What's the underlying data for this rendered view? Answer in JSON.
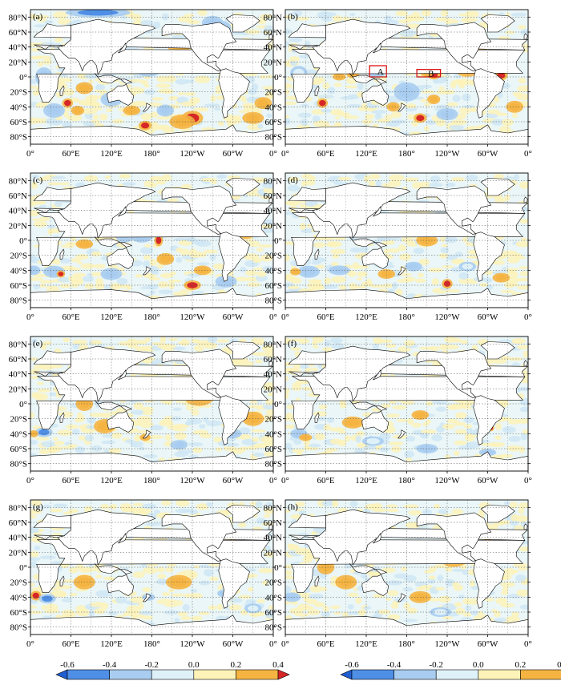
{
  "chart_data": {
    "type": "heatmap",
    "description_units": "anomaly",
    "lat_ticks": [
      "80°N",
      "60°N",
      "40°N",
      "20°N",
      "0°",
      "20°S",
      "40°S",
      "60°S",
      "80°S"
    ],
    "lat_values": [
      80,
      60,
      40,
      20,
      0,
      -20,
      -40,
      -60,
      -80
    ],
    "lon_ticks": [
      "0°",
      "60°E",
      "120°E",
      "180°",
      "120°W",
      "60°W",
      "0°"
    ],
    "lon_values": [
      0,
      60,
      120,
      180,
      240,
      300,
      360
    ],
    "lat_range": [
      -90,
      90
    ],
    "lon_range": [
      0,
      360
    ],
    "colorbar": {
      "labels": [
        "-0.6",
        "-0.4",
        "-0.2",
        "0.0",
        "0.2",
        "0.4"
      ],
      "bounds": [
        -0.6,
        -0.4,
        -0.2,
        0.0,
        0.2,
        0.4
      ],
      "colors": [
        "#1f5fd0",
        "#4f8fe6",
        "#a9cdf1",
        "#dff1f8",
        "#fdf2b8",
        "#f5b441",
        "#d72626"
      ]
    },
    "panels": [
      {
        "label": "(a)",
        "anomalies": [
          {
            "lon": 100,
            "lat": 86,
            "value": -0.45,
            "dlon": 30,
            "dlat": 4
          },
          {
            "lon": 285,
            "lat": 65,
            "value": -0.4,
            "dlon": 8,
            "dlat": 6
          },
          {
            "lon": 270,
            "lat": 72,
            "value": -0.3,
            "dlon": 10,
            "dlat": 6
          },
          {
            "lon": 240,
            "lat": -55,
            "value": 0.45,
            "dlon": 10,
            "dlat": 6
          },
          {
            "lon": 225,
            "lat": -60,
            "value": 0.3,
            "dlon": 12,
            "dlat": 6
          },
          {
            "lon": 200,
            "lat": -45,
            "value": -0.35,
            "dlon": 8,
            "dlat": 5
          },
          {
            "lon": 170,
            "lat": -65,
            "value": 0.45,
            "dlon": 6,
            "dlat": 4
          },
          {
            "lon": 55,
            "lat": -35,
            "value": 0.45,
            "dlon": 5,
            "dlat": 4
          },
          {
            "lon": 70,
            "lat": -45,
            "value": 0.3,
            "dlon": 6,
            "dlat": 4
          },
          {
            "lon": 150,
            "lat": -45,
            "value": 0.3,
            "dlon": 8,
            "dlat": 4
          },
          {
            "lon": 345,
            "lat": -35,
            "value": 0.35,
            "dlon": 8,
            "dlat": 5
          },
          {
            "lon": 330,
            "lat": -55,
            "value": 0.25,
            "dlon": 10,
            "dlat": 5
          },
          {
            "lon": 35,
            "lat": -45,
            "value": -0.25,
            "dlon": 10,
            "dlat": 6
          },
          {
            "lon": 175,
            "lat": 10,
            "value": -0.25,
            "dlon": 12,
            "dlat": 6
          },
          {
            "lon": 250,
            "lat": 20,
            "value": -0.25,
            "dlon": 10,
            "dlat": 6
          },
          {
            "lon": 120,
            "lat": -30,
            "value": -0.25,
            "dlon": 10,
            "dlat": 6
          },
          {
            "lon": 300,
            "lat": -10,
            "value": 0.25,
            "dlon": 10,
            "dlat": 6
          },
          {
            "lon": 20,
            "lat": 0,
            "value": -0.25,
            "dlon": 8,
            "dlat": 8
          },
          {
            "lon": 220,
            "lat": 40,
            "value": 0.25,
            "dlon": 10,
            "dlat": 6
          },
          {
            "lon": 80,
            "lat": -15,
            "value": 0.25,
            "dlon": 8,
            "dlat": 5
          }
        ]
      },
      {
        "label": "(b)",
        "boxes": [
          {
            "label": "A",
            "lon0": 125,
            "lon1": 150,
            "lat0": 0,
            "lat1": 15
          },
          {
            "label": "B",
            "lon0": 195,
            "lon1": 230,
            "lat0": 0,
            "lat1": 10
          }
        ],
        "anomalies": [
          {
            "lon": 220,
            "lat": 3,
            "value": 0.55,
            "dlon": 6,
            "dlat": 4
          },
          {
            "lon": 210,
            "lat": 5,
            "value": 0.35,
            "dlon": 6,
            "dlat": 3
          },
          {
            "lon": 320,
            "lat": 2,
            "value": 0.5,
            "dlon": 6,
            "dlat": 4
          },
          {
            "lon": 245,
            "lat": 12,
            "value": 0.45,
            "dlon": 4,
            "dlat": 3
          },
          {
            "lon": 135,
            "lat": 5,
            "value": -0.4,
            "dlon": 8,
            "dlat": 4
          },
          {
            "lon": 270,
            "lat": 10,
            "value": 0.3,
            "dlon": 12,
            "dlat": 6
          },
          {
            "lon": 100,
            "lat": 5,
            "value": 0.35,
            "dlon": 6,
            "dlat": 4
          },
          {
            "lon": 80,
            "lat": 0,
            "value": 0.3,
            "dlon": 6,
            "dlat": 3
          },
          {
            "lon": 55,
            "lat": -35,
            "value": 0.4,
            "dlon": 5,
            "dlat": 4
          },
          {
            "lon": 200,
            "lat": -55,
            "value": 0.45,
            "dlon": 6,
            "dlat": 4
          },
          {
            "lon": 220,
            "lat": -30,
            "value": 0.3,
            "dlon": 6,
            "dlat": 4
          },
          {
            "lon": 160,
            "lat": -40,
            "value": 0.3,
            "dlon": 6,
            "dlat": 4
          },
          {
            "lon": 240,
            "lat": -50,
            "value": -0.25,
            "dlon": 10,
            "dlat": 5
          },
          {
            "lon": 180,
            "lat": -20,
            "value": -0.25,
            "dlon": 12,
            "dlat": 8
          },
          {
            "lon": 200,
            "lat": 20,
            "value": -0.25,
            "dlon": 14,
            "dlat": 6
          },
          {
            "lon": 340,
            "lat": -40,
            "value": 0.25,
            "dlon": 8,
            "dlat": 5
          },
          {
            "lon": 20,
            "lat": 5,
            "value": -0.2,
            "dlon": 8,
            "dlat": 6
          },
          {
            "lon": 290,
            "lat": 30,
            "value": 0.25,
            "dlon": 10,
            "dlat": 5
          }
        ]
      },
      {
        "label": "(c)",
        "anomalies": [
          {
            "lon": 190,
            "lat": 0,
            "value": 0.55,
            "dlon": 4,
            "dlat": 5
          },
          {
            "lon": 165,
            "lat": 5,
            "value": -0.4,
            "dlon": 10,
            "dlat": 5
          },
          {
            "lon": 140,
            "lat": 10,
            "value": -0.3,
            "dlon": 10,
            "dlat": 8
          },
          {
            "lon": 35,
            "lat": -42,
            "value": -0.4,
            "dlon": 10,
            "dlat": 5
          },
          {
            "lon": 45,
            "lat": -45,
            "value": 0.5,
            "dlon": 4,
            "dlat": 3
          },
          {
            "lon": 240,
            "lat": -60,
            "value": 0.45,
            "dlon": 8,
            "dlat": 4
          },
          {
            "lon": 255,
            "lat": -40,
            "value": 0.3,
            "dlon": 8,
            "dlat": 4
          },
          {
            "lon": 80,
            "lat": -5,
            "value": 0.3,
            "dlon": 8,
            "dlat": 4
          },
          {
            "lon": 320,
            "lat": 10,
            "value": 0.3,
            "dlon": 8,
            "dlat": 5
          },
          {
            "lon": 200,
            "lat": -25,
            "value": 0.3,
            "dlon": 8,
            "dlat": 5
          },
          {
            "lon": 120,
            "lat": -45,
            "value": -0.25,
            "dlon": 10,
            "dlat": 5
          },
          {
            "lon": 290,
            "lat": -55,
            "value": -0.25,
            "dlon": 10,
            "dlat": 5
          },
          {
            "lon": 230,
            "lat": 20,
            "value": 0.25,
            "dlon": 10,
            "dlat": 5
          },
          {
            "lon": 5,
            "lat": -40,
            "value": -0.25,
            "dlon": 6,
            "dlat": 4
          },
          {
            "lon": 100,
            "lat": 40,
            "value": 0.25,
            "dlon": 10,
            "dlat": 5
          }
        ]
      },
      {
        "label": "(d)",
        "anomalies": [
          {
            "lon": 35,
            "lat": -42,
            "value": -0.4,
            "dlon": 10,
            "dlat": 5
          },
          {
            "lon": 15,
            "lat": -42,
            "value": 0.35,
            "dlon": 5,
            "dlat": 3
          },
          {
            "lon": 240,
            "lat": -58,
            "value": 0.45,
            "dlon": 5,
            "dlat": 4
          },
          {
            "lon": 190,
            "lat": -35,
            "value": -0.25,
            "dlon": 8,
            "dlat": 4
          },
          {
            "lon": 210,
            "lat": 0,
            "value": 0.25,
            "dlon": 10,
            "dlat": 5
          },
          {
            "lon": 80,
            "lat": -40,
            "value": -0.25,
            "dlon": 10,
            "dlat": 4
          },
          {
            "lon": 320,
            "lat": -50,
            "value": 0.25,
            "dlon": 8,
            "dlat": 4
          },
          {
            "lon": 150,
            "lat": -45,
            "value": 0.25,
            "dlon": 8,
            "dlat": 4
          },
          {
            "lon": 250,
            "lat": 20,
            "value": 0.2,
            "dlon": 10,
            "dlat": 5
          },
          {
            "lon": 270,
            "lat": -35,
            "value": -0.2,
            "dlon": 8,
            "dlat": 4
          }
        ]
      },
      {
        "label": "(e)",
        "anomalies": [
          {
            "lon": 20,
            "lat": -38,
            "value": -0.45,
            "dlon": 8,
            "dlat": 4
          },
          {
            "lon": 5,
            "lat": -40,
            "value": 0.35,
            "dlon": 4,
            "dlat": 3
          },
          {
            "lon": 170,
            "lat": -45,
            "value": 0.3,
            "dlon": 5,
            "dlat": 3
          },
          {
            "lon": 220,
            "lat": -55,
            "value": -0.3,
            "dlon": 8,
            "dlat": 4
          },
          {
            "lon": 80,
            "lat": 0,
            "value": 0.25,
            "dlon": 8,
            "dlat": 6
          },
          {
            "lon": 110,
            "lat": -30,
            "value": 0.25,
            "dlon": 10,
            "dlat": 6
          },
          {
            "lon": 250,
            "lat": 10,
            "value": 0.2,
            "dlon": 14,
            "dlat": 8
          },
          {
            "lon": 300,
            "lat": -40,
            "value": -0.25,
            "dlon": 8,
            "dlat": 4
          },
          {
            "lon": 330,
            "lat": -20,
            "value": 0.2,
            "dlon": 10,
            "dlat": 6
          },
          {
            "lon": 150,
            "lat": 20,
            "value": 0.2,
            "dlon": 10,
            "dlat": 6
          }
        ]
      },
      {
        "label": "(f)",
        "anomalies": [
          {
            "lon": 305,
            "lat": -32,
            "value": 0.5,
            "dlon": 3,
            "dlat": 3
          },
          {
            "lon": 20,
            "lat": -40,
            "value": -0.3,
            "dlon": 8,
            "dlat": 4
          },
          {
            "lon": 30,
            "lat": -45,
            "value": 0.25,
            "dlon": 6,
            "dlat": 3
          },
          {
            "lon": 300,
            "lat": -65,
            "value": -0.35,
            "dlon": 8,
            "dlat": 3
          },
          {
            "lon": 200,
            "lat": -15,
            "value": 0.3,
            "dlon": 8,
            "dlat": 4
          },
          {
            "lon": 170,
            "lat": 25,
            "value": 0.25,
            "dlon": 10,
            "dlat": 5
          },
          {
            "lon": 210,
            "lat": -60,
            "value": -0.25,
            "dlon": 10,
            "dlat": 4
          },
          {
            "lon": 100,
            "lat": -25,
            "value": 0.2,
            "dlon": 10,
            "dlat": 5
          },
          {
            "lon": 250,
            "lat": 15,
            "value": 0.2,
            "dlon": 12,
            "dlat": 6
          },
          {
            "lon": 130,
            "lat": -50,
            "value": -0.2,
            "dlon": 10,
            "dlat": 4
          }
        ]
      },
      {
        "label": "(g)",
        "anomalies": [
          {
            "lon": 8,
            "lat": -38,
            "value": 0.55,
            "dlon": 5,
            "dlat": 4
          },
          {
            "lon": 25,
            "lat": -42,
            "value": -0.45,
            "dlon": 8,
            "dlat": 4
          },
          {
            "lon": 300,
            "lat": 40,
            "value": 0.4,
            "dlon": 3,
            "dlat": 3
          },
          {
            "lon": 285,
            "lat": -35,
            "value": -0.35,
            "dlon": 5,
            "dlat": 3
          },
          {
            "lon": 150,
            "lat": 32,
            "value": 0.3,
            "dlon": 6,
            "dlat": 3
          },
          {
            "lon": 175,
            "lat": -40,
            "value": -0.25,
            "dlon": 6,
            "dlat": 3
          },
          {
            "lon": 80,
            "lat": -20,
            "value": 0.2,
            "dlon": 10,
            "dlat": 6
          },
          {
            "lon": 220,
            "lat": -20,
            "value": 0.2,
            "dlon": 12,
            "dlat": 6
          },
          {
            "lon": 200,
            "lat": 20,
            "value": 0.2,
            "dlon": 12,
            "dlat": 6
          },
          {
            "lon": 330,
            "lat": -55,
            "value": -0.2,
            "dlon": 8,
            "dlat": 4
          }
        ]
      },
      {
        "label": "(h)",
        "anomalies": [
          {
            "lon": 10,
            "lat": -40,
            "value": -0.4,
            "dlon": 8,
            "dlat": 4
          },
          {
            "lon": 300,
            "lat": 35,
            "value": 0.35,
            "dlon": 3,
            "dlat": 3
          },
          {
            "lon": 160,
            "lat": 25,
            "value": 0.2,
            "dlon": 10,
            "dlat": 6
          },
          {
            "lon": 200,
            "lat": -40,
            "value": 0.2,
            "dlon": 10,
            "dlat": 5
          },
          {
            "lon": 250,
            "lat": 10,
            "value": 0.2,
            "dlon": 12,
            "dlat": 6
          },
          {
            "lon": 90,
            "lat": -20,
            "value": 0.2,
            "dlon": 10,
            "dlat": 6
          },
          {
            "lon": 230,
            "lat": -60,
            "value": -0.2,
            "dlon": 10,
            "dlat": 4
          },
          {
            "lon": 60,
            "lat": 0,
            "value": 0.2,
            "dlon": 8,
            "dlat": 6
          }
        ]
      }
    ]
  }
}
